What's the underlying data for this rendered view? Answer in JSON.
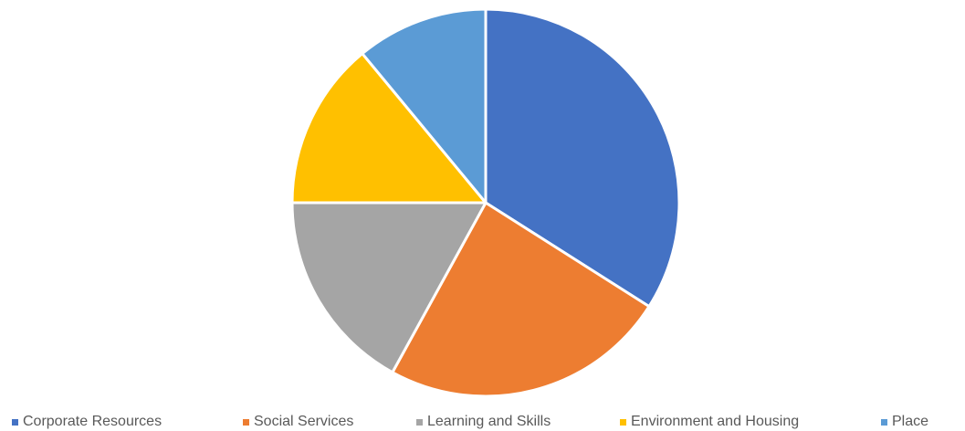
{
  "chart_data": {
    "type": "pie",
    "title": "",
    "categories": [
      "Corporate Resources",
      "Social Services",
      "Learning and Skills",
      "Environment and Housing",
      "Place"
    ],
    "values": [
      34,
      24,
      17,
      14,
      11
    ],
    "colors": [
      "#4472C4",
      "#ED7D31",
      "#A5A5A5",
      "#FFC000",
      "#5B9BD5"
    ],
    "legend_position": "bottom",
    "start_angle": "12 o'clock",
    "direction": "clockwise"
  }
}
